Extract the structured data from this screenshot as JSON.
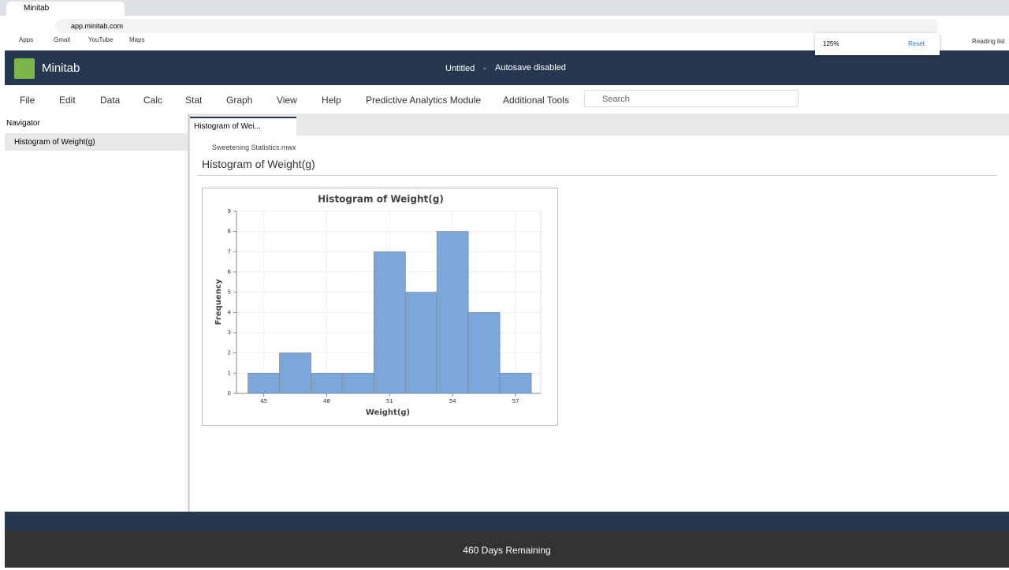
{
  "browser": {
    "tab_title": "Minitab",
    "url": "app.minitab.com",
    "bookmarks": [
      "Apps",
      "Gmail",
      "YouTube",
      "Maps"
    ],
    "zoom": "125%",
    "reset": "Reset",
    "reading_list": "Reading list"
  },
  "app": {
    "name": "Minitab",
    "document": "Untitled",
    "separator": "-",
    "autosave": "Autosave disabled",
    "menu": [
      "File",
      "Edit",
      "Data",
      "Calc",
      "Stat",
      "Graph",
      "View",
      "Help",
      "Predictive Analytics Module",
      "Additional Tools"
    ],
    "search": "Search"
  },
  "navigator": {
    "title": "Navigator",
    "items": [
      "Histogram of Weight(g)"
    ]
  },
  "output": {
    "tab": "Histogram of Wei...",
    "file": "Sweetening Statistics.mwx",
    "title": "Histogram of Weight(g)"
  },
  "footer": "460 Days Remaining",
  "chart_data": {
    "type": "histogram",
    "title": "Histogram of Weight(g)",
    "x_label": "Weight(g)",
    "y_label": "Frequency",
    "bins": [
      44.25,
      45.75,
      47.25,
      48.75,
      50.25,
      51.75,
      53.25,
      54.75,
      56.25,
      57.75
    ],
    "counts": [
      1,
      2,
      1,
      1,
      7,
      5,
      8,
      4,
      1
    ],
    "color": "#7ba7da",
    "xlim": [
      43.7,
      58.2
    ],
    "xticks": [
      45,
      48,
      51,
      54,
      57
    ],
    "ylim": [
      0,
      9
    ],
    "yticks": [
      0,
      1,
      2,
      3,
      4,
      5,
      6,
      7,
      8,
      9
    ],
    "grid": true
  }
}
